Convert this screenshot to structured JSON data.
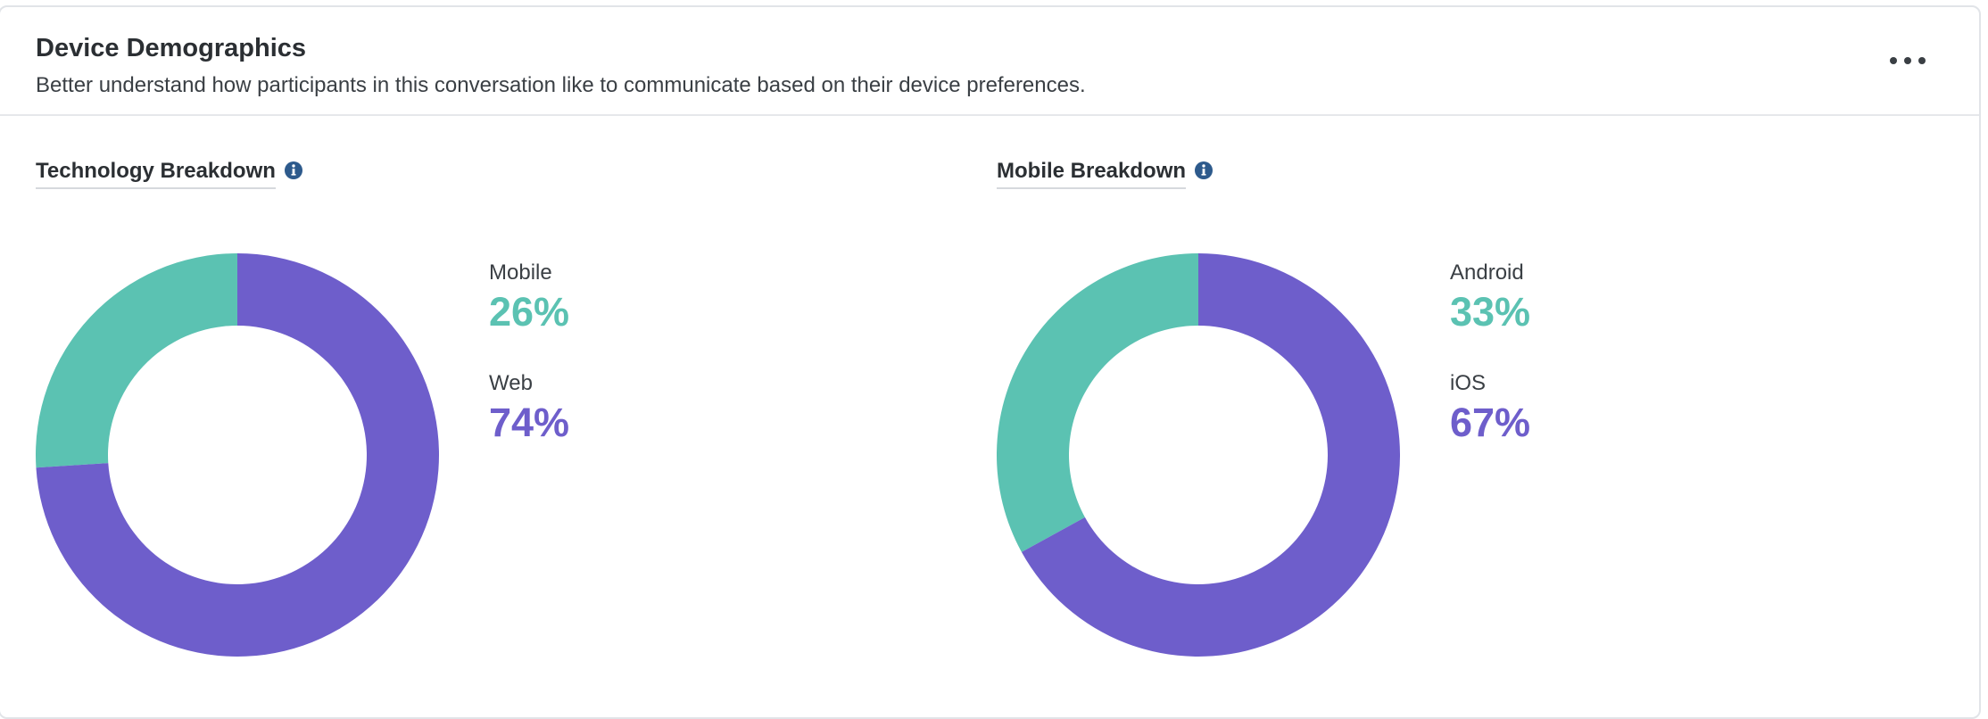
{
  "header": {
    "title": "Device Demographics",
    "subtitle": "Better understand how participants in this conversation like to communicate based on their device preferences.",
    "more_icon": "more-horizontal-icon"
  },
  "colors": {
    "teal": "#5bc2b2",
    "purple": "#6e5ecb",
    "info": "#2d5a8c"
  },
  "panels": [
    {
      "title": "Technology Breakdown",
      "info_icon": "info-icon",
      "items": [
        {
          "label": "Mobile",
          "value": "26%"
        },
        {
          "label": "Web",
          "value": "74%"
        }
      ]
    },
    {
      "title": "Mobile Breakdown",
      "info_icon": "info-icon",
      "items": [
        {
          "label": "Android",
          "value": "33%"
        },
        {
          "label": "iOS",
          "value": "67%"
        }
      ]
    }
  ],
  "chart_data": [
    {
      "type": "pie",
      "categories": [
        "Mobile",
        "Web"
      ],
      "values": [
        26,
        74
      ],
      "colors": [
        "#5bc2b2",
        "#6e5ecb"
      ],
      "title": "Technology Breakdown",
      "donut": true
    },
    {
      "type": "pie",
      "categories": [
        "Android",
        "iOS"
      ],
      "values": [
        33,
        67
      ],
      "colors": [
        "#5bc2b2",
        "#6e5ecb"
      ],
      "title": "Mobile Breakdown",
      "donut": true
    }
  ]
}
